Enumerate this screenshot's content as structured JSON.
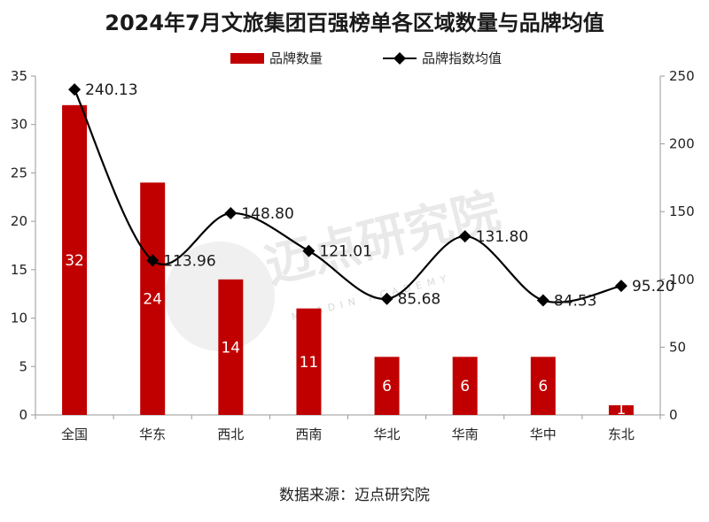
{
  "chart_data": {
    "type": "bar",
    "title": "2024年7月文旅集团百强榜单各区域数量与品牌均值",
    "categories": [
      "全国",
      "华东",
      "西北",
      "西南",
      "华北",
      "华南",
      "华中",
      "东北"
    ],
    "series": [
      {
        "name": "品牌数量",
        "type": "bar",
        "axis": "left",
        "color": "#c00000",
        "values": [
          32,
          24,
          14,
          11,
          6,
          6,
          6,
          1
        ],
        "labels": [
          "32",
          "24",
          "14",
          "11",
          "6",
          "6",
          "6",
          "1"
        ]
      },
      {
        "name": "品牌指数均值",
        "type": "line",
        "axis": "right",
        "color": "#000000",
        "values": [
          240.13,
          113.96,
          148.8,
          121.01,
          85.68,
          131.8,
          84.53,
          95.2
        ],
        "labels": [
          "240.13",
          "113.96",
          "148.80",
          "121.01",
          "85.68",
          "131.80",
          "84.53",
          "95.20"
        ]
      }
    ],
    "y_left": {
      "min": 0,
      "max": 35,
      "step": 5,
      "ticks": [
        "0",
        "5",
        "10",
        "15",
        "20",
        "25",
        "30",
        "35"
      ]
    },
    "y_right": {
      "min": 0,
      "max": 250,
      "step": 50,
      "ticks": [
        "0",
        "50",
        "100",
        "150",
        "200",
        "250"
      ]
    },
    "legend_position": "top-center",
    "grid": false
  },
  "source": "数据来源：迈点研究院",
  "watermark": {
    "text": "迈点研究院",
    "subtext": "MEADIN ACADEMY"
  }
}
